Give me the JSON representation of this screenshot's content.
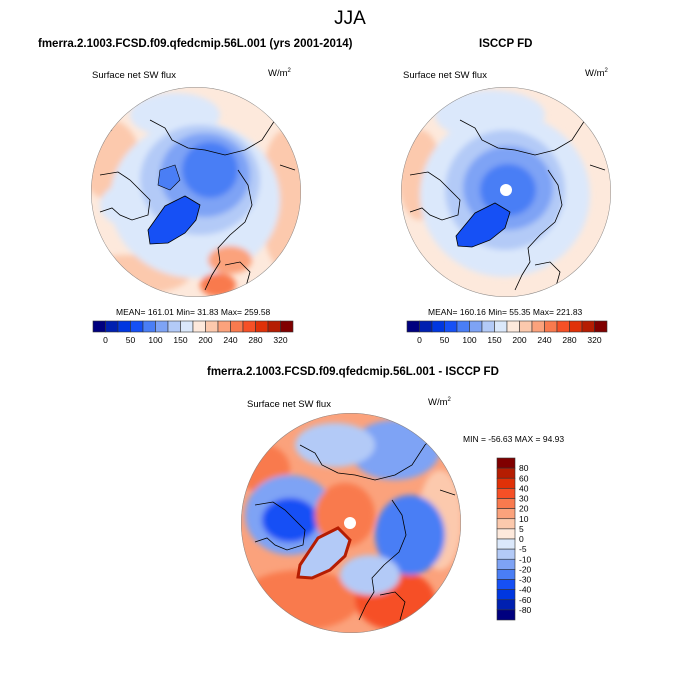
{
  "figure": {
    "title": "JJA"
  },
  "chart_data": [
    {
      "type": "heatmap",
      "projection": "north-polar-stereographic",
      "title": "fmerra.2.1003.FCSD.f09.qfedcmip.56L.001 (yrs 2001-2014)",
      "left_string": "Surface net SW flux",
      "right_string": "W/m",
      "right_sup": "2",
      "stats": {
        "mean": 161.01,
        "min": 31.83,
        "max": 259.58
      },
      "stats_text": "MEAN= 161.01  Min=  31.83  Max= 259.58",
      "colorbar": {
        "orientation": "horizontal",
        "levels": [
          0,
          25,
          50,
          75,
          100,
          125,
          150,
          175,
          200,
          220,
          240,
          260,
          280,
          300,
          320
        ],
        "tick_labels": [
          "0",
          "50",
          "100",
          "150",
          "200",
          "240",
          "280",
          "320"
        ],
        "colors": [
          "#00007f",
          "#0020b0",
          "#0037e0",
          "#1650f5",
          "#4a7ef5",
          "#7ea3f5",
          "#b3caf7",
          "#dbe8fb",
          "#fde9dc",
          "#fcc9ad",
          "#fba27c",
          "#f97a4e",
          "#f65026",
          "#e03108",
          "#b51d02",
          "#800000"
        ]
      },
      "field_description": "Blue (low, 50-175) over Arctic Ocean, Greenland and Canadian archipelago; light orange (175-240) over mid-latitude land/ocean; darker orange over Mediterranean/Europe south"
    },
    {
      "type": "heatmap",
      "projection": "north-polar-stereographic",
      "title": "ISCCP FD",
      "left_string": "Surface net SW flux",
      "right_string": "W/m",
      "right_sup": "2",
      "stats": {
        "mean": 160.16,
        "min": 55.35,
        "max": 221.83
      },
      "stats_text": "MEAN= 160.16  Min=  55.35  Max= 221.83",
      "colorbar": {
        "orientation": "horizontal",
        "levels": [
          0,
          25,
          50,
          75,
          100,
          125,
          150,
          175,
          200,
          220,
          240,
          260,
          280,
          300,
          320
        ],
        "tick_labels": [
          "0",
          "50",
          "100",
          "150",
          "200",
          "240",
          "280",
          "320"
        ],
        "colors": [
          "#00007f",
          "#0020b0",
          "#0037e0",
          "#1650f5",
          "#4a7ef5",
          "#7ea3f5",
          "#b3caf7",
          "#dbe8fb",
          "#fde9dc",
          "#fcc9ad",
          "#fba27c",
          "#f97a4e",
          "#f65026",
          "#e03108",
          "#b51d02",
          "#800000"
        ]
      },
      "field_description": "Blue minimum over central Arctic with missing data at pole; light orange/peach at mid-latitudes"
    },
    {
      "type": "heatmap",
      "projection": "north-polar-stereographic",
      "title": "fmerra.2.1003.FCSD.f09.qfedcmip.56L.001 - ISCCP FD",
      "left_string": "Surface net SW flux",
      "right_string": "W/m",
      "right_sup": "2",
      "stats": {
        "min": -56.63,
        "max": 94.93
      },
      "stats_text": "MIN = -56.63 MAX =  94.93",
      "colorbar": {
        "orientation": "vertical",
        "levels": [
          -80,
          -60,
          -40,
          -30,
          -20,
          -10,
          -5,
          0,
          5,
          10,
          20,
          30,
          40,
          60,
          80
        ],
        "tick_labels": [
          "-80",
          "-60",
          "-40",
          "-30",
          "-20",
          "-10",
          "-5",
          "0",
          "5",
          "10",
          "20",
          "30",
          "40",
          "60",
          "80"
        ],
        "colors": [
          "#00007f",
          "#0020b0",
          "#0037e0",
          "#1650f5",
          "#4a7ef5",
          "#7ea3f5",
          "#b3caf7",
          "#dbe8fb",
          "#fde9dc",
          "#fcc9ad",
          "#fba27c",
          "#f97a4e",
          "#f65026",
          "#e03108",
          "#b51d02",
          "#800000"
        ]
      },
      "field_description": "Positive (orange) differences over central Arctic Ocean and mid-latitudes; negative (blue) over Canadian archipelago, Siberia, N. Atlantic; red ring around Greenland coast"
    }
  ]
}
